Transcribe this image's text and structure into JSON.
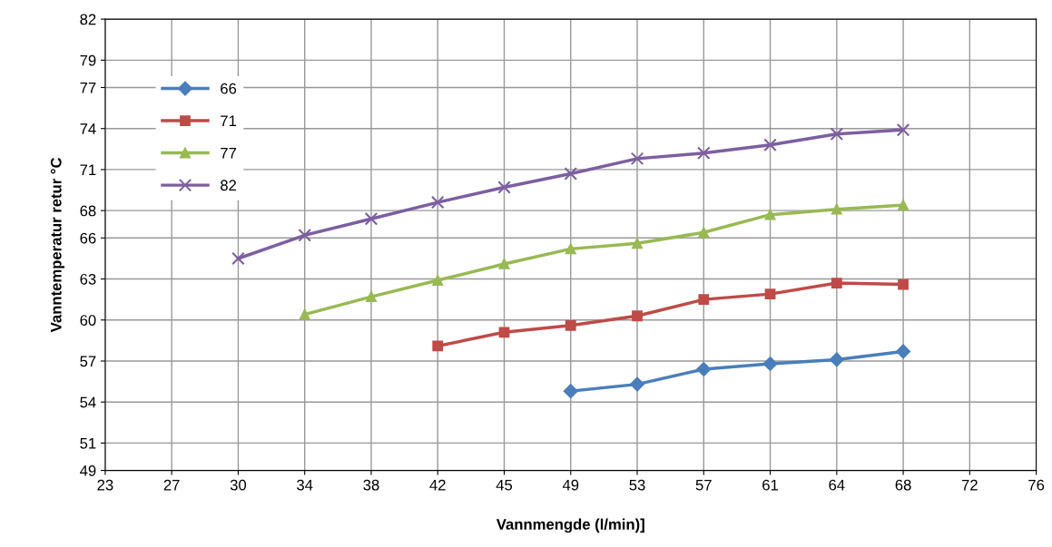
{
  "chart_data": {
    "type": "line",
    "xlabel": "Vannmengde (l/min)]",
    "ylabel": "Vanntemperatur retur °C",
    "categories": [
      "23",
      "27",
      "30",
      "34",
      "38",
      "42",
      "45",
      "49",
      "53",
      "57",
      "61",
      "64",
      "68",
      "72",
      "76"
    ],
    "series": [
      {
        "name": "66",
        "color": "#4a7ebb",
        "marker": "diamond",
        "values": [
          null,
          null,
          null,
          null,
          null,
          null,
          null,
          54.8,
          55.3,
          56.4,
          56.8,
          57.1,
          57.7,
          null,
          null
        ]
      },
      {
        "name": "71",
        "color": "#be4b48",
        "marker": "square",
        "values": [
          null,
          null,
          null,
          null,
          null,
          58.1,
          59.1,
          59.6,
          60.3,
          61.5,
          61.9,
          62.7,
          62.6,
          null,
          null
        ]
      },
      {
        "name": "77",
        "color": "#98b954",
        "marker": "triangle",
        "values": [
          null,
          null,
          null,
          60.4,
          61.7,
          62.9,
          64.1,
          65.2,
          65.6,
          66.4,
          67.7,
          68.1,
          68.4,
          null,
          null
        ]
      },
      {
        "name": "82",
        "color": "#7d5fa0",
        "marker": "cross",
        "values": [
          null,
          null,
          64.5,
          66.2,
          67.4,
          68.6,
          69.7,
          70.7,
          71.8,
          72.2,
          72.8,
          73.6,
          73.9,
          null,
          null
        ]
      }
    ],
    "ylim": [
      49,
      82
    ],
    "yticks": [
      49,
      51,
      54,
      57,
      60,
      63,
      66,
      68,
      71,
      74,
      77,
      79,
      82
    ],
    "grid": true,
    "legend": "top left",
    "line_style": "solid"
  }
}
